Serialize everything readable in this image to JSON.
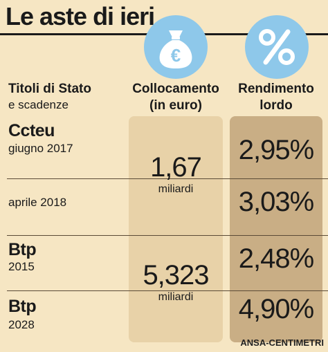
{
  "chart_data": {
    "type": "table",
    "title": "Le aste di ieri",
    "columns": {
      "securities": [
        "Titoli di Stato",
        "e scadenze"
      ],
      "placement": [
        "Collocamento",
        "(in euro)"
      ],
      "yield": [
        "Rendimento",
        "lordo"
      ]
    },
    "rows": [
      {
        "name": "Ccteu",
        "maturity": "giugno 2017",
        "yield": "2,95%"
      },
      {
        "name": "",
        "maturity": "aprile 2018",
        "yield": "3,03%"
      },
      {
        "name": "Btp",
        "maturity": "2015",
        "yield": "2,48%"
      },
      {
        "name": "Btp",
        "maturity": "2028",
        "yield": "4,90%"
      }
    ],
    "placements": [
      {
        "value": "1,67",
        "unit": "miliardi"
      },
      {
        "value": "5,323",
        "unit": "miliardi"
      }
    ],
    "source": "ANSA-CENTIMETRI"
  },
  "icons": {
    "placement": "money-bag-euro-icon",
    "yield": "percent-icon",
    "circle_color": "#8ec8ea"
  }
}
